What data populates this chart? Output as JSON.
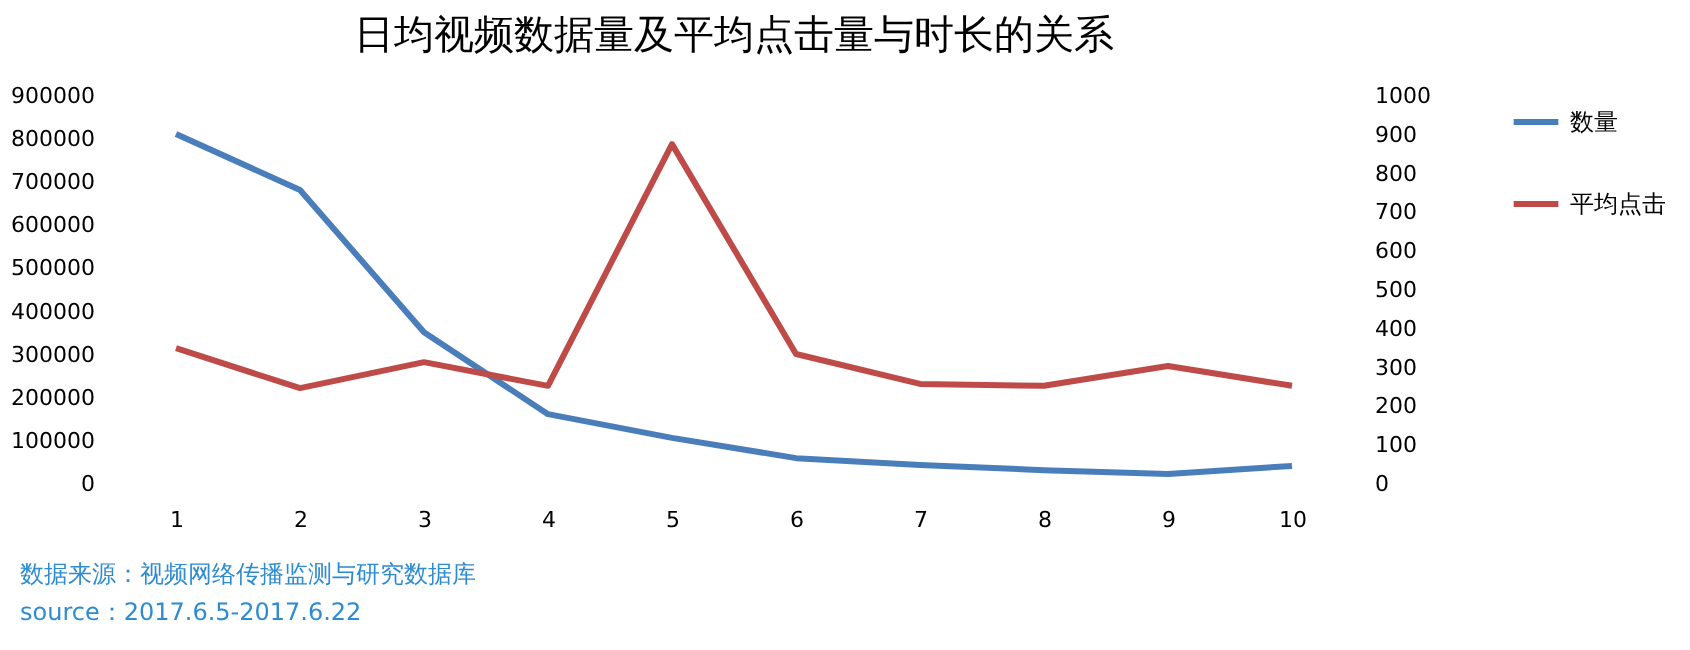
{
  "chart_data": {
    "type": "line",
    "title": "日均视频数据量及平均点击量与时长的关系",
    "categories": [
      "1",
      "2",
      "3",
      "4",
      "5",
      "6",
      "7",
      "8",
      "9",
      "10"
    ],
    "series": [
      {
        "name": "数量",
        "color": "#4a7ebb",
        "values": [
          812000,
          682000,
          352000,
          162000,
          107000,
          60000,
          44000,
          32000,
          23000,
          42000
        ]
      },
      {
        "name": "平均点击",
        "color": "#be4b48",
        "axis": "y2",
        "values": [
          350,
          247,
          314,
          253,
          876,
          335,
          258,
          253,
          304,
          253
        ]
      }
    ],
    "ylim": [
      0,
      900000
    ],
    "yticks": [
      0,
      100000,
      200000,
      300000,
      400000,
      500000,
      600000,
      700000,
      800000,
      900000
    ],
    "y2lim": [
      0,
      1000
    ],
    "y2ticks": [
      0,
      100,
      200,
      300,
      400,
      500,
      600,
      700,
      800,
      900,
      1000
    ],
    "legend": "right",
    "grid": false,
    "marker": "none",
    "line_style": "solid",
    "annotations": [
      "数据来源：视频网络传播监测与研究数据库",
      "source：2017.6.5-2017.6.22"
    ]
  }
}
